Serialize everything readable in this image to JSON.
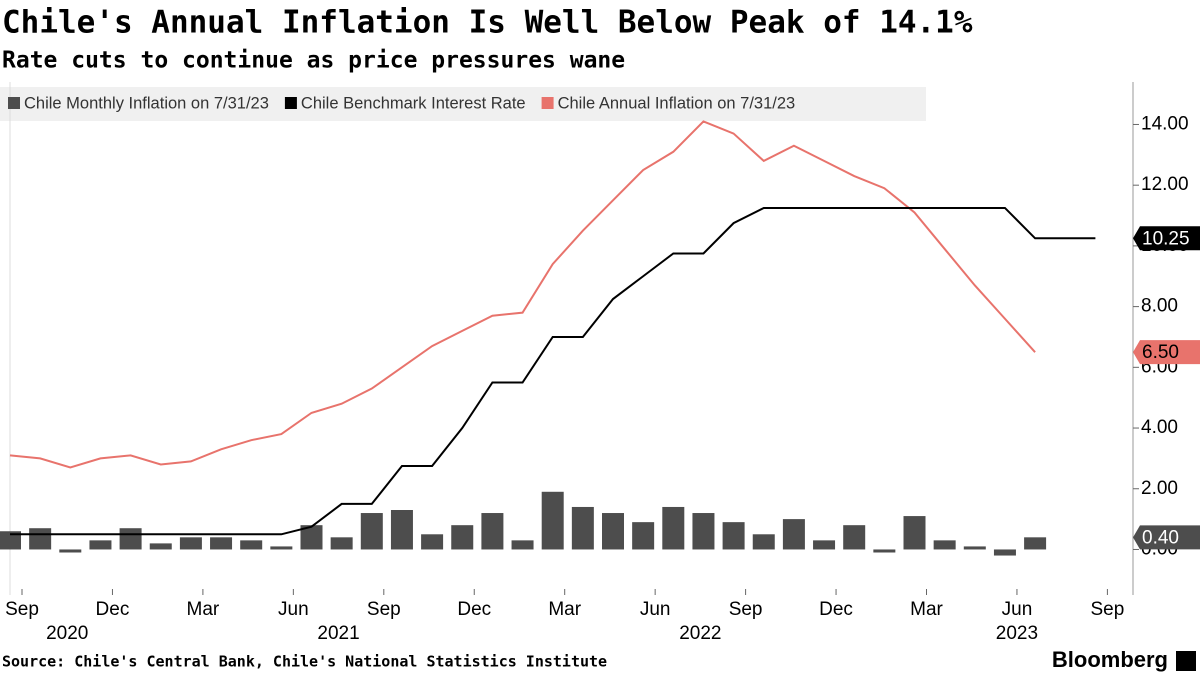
{
  "chart_data": {
    "type": "bar-line",
    "title": "Chile's Annual Inflation Is Well Below Peak of 14.1%",
    "subtitle": "Rate cuts to continue as price pressures wane",
    "source": "Source: Chile's Central Bank, Chile's National Statistics Institute",
    "brand": "Bloomberg",
    "x": [
      "2020-09",
      "2020-10",
      "2020-11",
      "2020-12",
      "2021-01",
      "2021-02",
      "2021-03",
      "2021-04",
      "2021-05",
      "2021-06",
      "2021-07",
      "2021-08",
      "2021-09",
      "2021-10",
      "2021-11",
      "2021-12",
      "2022-01",
      "2022-02",
      "2022-03",
      "2022-04",
      "2022-05",
      "2022-06",
      "2022-07",
      "2022-08",
      "2022-09",
      "2022-10",
      "2022-11",
      "2022-12",
      "2023-01",
      "2023-02",
      "2023-03",
      "2023-04",
      "2023-05",
      "2023-06",
      "2023-07",
      "2023-08",
      "2023-09"
    ],
    "series": [
      {
        "name": "Chile Monthly Inflation on 7/31/23",
        "type": "bar",
        "color": "#4d4d4d",
        "last_label": "0.40",
        "values": [
          0.6,
          0.7,
          -0.1,
          0.3,
          0.7,
          0.2,
          0.4,
          0.4,
          0.3,
          0.1,
          0.8,
          0.4,
          1.2,
          1.3,
          0.5,
          0.8,
          1.2,
          0.3,
          1.9,
          1.4,
          1.2,
          0.9,
          1.4,
          1.2,
          0.9,
          0.5,
          1.0,
          0.3,
          0.8,
          -0.1,
          1.1,
          0.3,
          0.1,
          -0.2,
          0.4,
          null,
          null
        ]
      },
      {
        "name": "Chile Benchmark Interest Rate",
        "type": "line",
        "color": "#000000",
        "last_label": "10.25",
        "values": [
          0.5,
          0.5,
          0.5,
          0.5,
          0.5,
          0.5,
          0.5,
          0.5,
          0.5,
          0.5,
          0.75,
          1.5,
          1.5,
          2.75,
          2.75,
          4.0,
          5.5,
          5.5,
          7.0,
          7.0,
          8.25,
          9.0,
          9.75,
          9.75,
          10.75,
          11.25,
          11.25,
          11.25,
          11.25,
          11.25,
          11.25,
          11.25,
          11.25,
          11.25,
          10.25,
          10.25,
          10.25
        ]
      },
      {
        "name": "Chile Annual Inflation on 7/31/23",
        "type": "line",
        "color": "#e8736c",
        "last_label": "6.50",
        "values": [
          3.1,
          3.0,
          2.7,
          3.0,
          3.1,
          2.8,
          2.9,
          3.3,
          3.6,
          3.8,
          4.5,
          4.8,
          5.3,
          6.0,
          6.7,
          7.2,
          7.7,
          7.8,
          9.4,
          10.5,
          11.5,
          12.5,
          13.1,
          14.1,
          13.7,
          12.8,
          13.3,
          12.8,
          12.3,
          11.9,
          11.1,
          9.9,
          8.7,
          7.6,
          6.5,
          null,
          null
        ]
      }
    ],
    "ylim": [
      -1.5,
      15.3
    ],
    "yticks": [
      {
        "value": 0,
        "label": "0.00"
      },
      {
        "value": 2,
        "label": "2.00"
      },
      {
        "value": 4,
        "label": "4.00"
      },
      {
        "value": 6,
        "label": "6.00"
      },
      {
        "value": 8,
        "label": "8.00"
      },
      {
        "value": 10,
        "label": "10.00"
      },
      {
        "value": 12,
        "label": "12.00"
      },
      {
        "value": 14,
        "label": "14.00"
      }
    ],
    "xticks": [
      {
        "value": "2020-09",
        "label": "Sep"
      },
      {
        "value": "2020-12",
        "label": "Dec"
      },
      {
        "value": "2021-03",
        "label": "Mar"
      },
      {
        "value": "2021-06",
        "label": "Jun"
      },
      {
        "value": "2021-09",
        "label": "Sep"
      },
      {
        "value": "2021-12",
        "label": "Dec"
      },
      {
        "value": "2022-03",
        "label": "Mar"
      },
      {
        "value": "2022-06",
        "label": "Jun"
      },
      {
        "value": "2022-09",
        "label": "Sep"
      },
      {
        "value": "2022-12",
        "label": "Dec"
      },
      {
        "value": "2023-03",
        "label": "Mar"
      },
      {
        "value": "2023-06",
        "label": "Jun"
      },
      {
        "value": "2023-09",
        "label": "Sep"
      }
    ],
    "year_labels": [
      "2020",
      "2021",
      "2022",
      "2023"
    ]
  }
}
